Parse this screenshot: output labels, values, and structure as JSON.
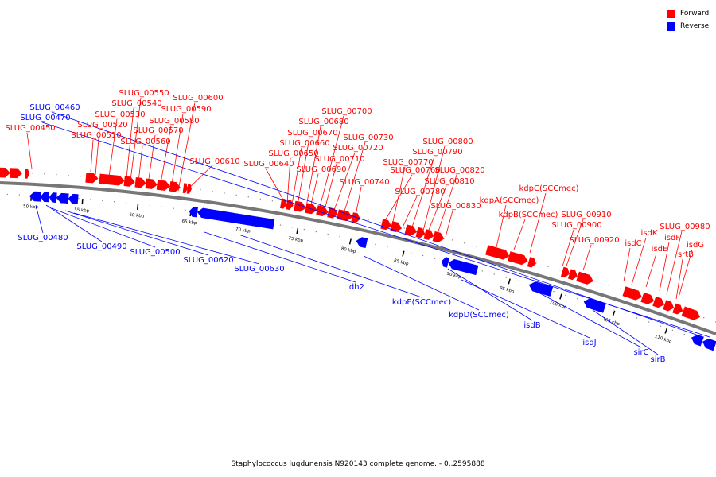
{
  "legend": {
    "forward_label": "Forward",
    "reverse_label": "Reverse",
    "forward_color": "#ff0000",
    "reverse_color": "#0000ff"
  },
  "caption": "Staphylococcus lugdunensis N920143 complete genome. - 0..2595888",
  "genome_map": {
    "backbone_color": "#777777",
    "forward_gene_color": "#ff0000",
    "reverse_gene_color": "#0000ff",
    "tick_labels": [
      "50 kbp",
      "55 kbp",
      "60 kbp",
      "65 kbp",
      "70 kbp",
      "75 kbp",
      "80 kbp",
      "85 kbp",
      "90 kbp",
      "95 kbp",
      "100 kbp",
      "105 kbp",
      "110 kbp"
    ],
    "forward_gene_labels": [
      "SLUG_00450",
      "SLUG_00510",
      "SLUG_00520",
      "SLUG_00530",
      "SLUG_00540",
      "SLUG_00550",
      "SLUG_00560",
      "SLUG_00570",
      "SLUG_00580",
      "SLUG_00590",
      "SLUG_00600",
      "SLUG_00610",
      "SLUG_00640",
      "SLUG_00650",
      "SLUG_00660",
      "SLUG_00670",
      "SLUG_00680",
      "SLUG_00690",
      "SLUG_00700",
      "SLUG_00710",
      "SLUG_00720",
      "SLUG_00730",
      "SLUG_00740",
      "SLUG_00760",
      "SLUG_00770",
      "SLUG_00780",
      "SLUG_00790",
      "SLUG_00800",
      "SLUG_00810",
      "SLUG_00820",
      "SLUG_00830",
      "kdpA(SCCmec)",
      "kdpB(SCCmec)",
      "kdpC(SCCmec)",
      "SLUG_00900",
      "SLUG_00910",
      "SLUG_00920",
      "isdC",
      "isdK",
      "isdE",
      "isdF",
      "SLUG_00980",
      "isdG",
      "srtB"
    ],
    "reverse_gene_labels": [
      "SLUG_00460",
      "SLUG_00470",
      "SLUG_00480",
      "SLUG_00490",
      "SLUG_00500",
      "SLUG_00620",
      "SLUG_00630",
      "ldh2",
      "kdpE(SCCmec)",
      "kdpD(SCCmec)",
      "isdB",
      "isdJ",
      "sirC",
      "sirB"
    ]
  }
}
